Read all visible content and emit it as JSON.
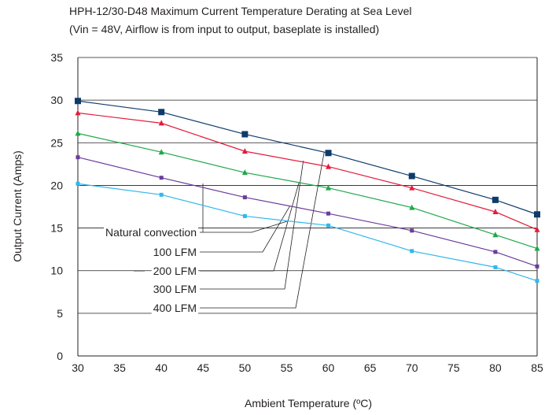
{
  "chart_data": {
    "type": "line",
    "title": "HPH-12/30-D48 Maximum Current Temperature Derating at Sea Level",
    "subtitle": "(Vin = 48V, Airflow is from input to output, baseplate is installed)",
    "xlabel": "Ambient Temperature (ºC)",
    "ylabel": "Output Current (Amps)",
    "xlim": [
      30,
      85
    ],
    "ylim": [
      0,
      35
    ],
    "xticks": [
      "30",
      "35",
      "40",
      "45",
      "50",
      "55",
      "60",
      "65",
      "70",
      "75",
      "80",
      "85"
    ],
    "yticks": [
      "0",
      "5",
      "10",
      "15",
      "20",
      "25",
      "30",
      "35"
    ],
    "grid": "horizontal",
    "x": [
      30,
      40,
      50,
      60,
      70,
      80,
      85
    ],
    "series": [
      {
        "name": "Natural convection",
        "color": "#30b8ec",
        "marker": "square",
        "values": [
          20.2,
          18.9,
          16.4,
          15.3,
          12.3,
          10.4,
          8.8
        ]
      },
      {
        "name": "100 LFM",
        "color": "#6a3d9a",
        "marker": "square",
        "values": [
          23.3,
          20.9,
          18.6,
          16.7,
          14.7,
          12.2,
          10.5
        ]
      },
      {
        "name": "200 LFM",
        "color": "#1fa84a",
        "marker": "triangle",
        "values": [
          26.1,
          23.9,
          21.5,
          19.7,
          17.4,
          14.2,
          12.6
        ]
      },
      {
        "name": "300 LFM",
        "color": "#e31b3c",
        "marker": "triangle",
        "values": [
          28.5,
          27.3,
          24.0,
          22.2,
          19.7,
          16.9,
          14.8
        ]
      },
      {
        "name": "400 LFM",
        "color": "#0d3b6b",
        "marker": "square",
        "values": [
          29.9,
          28.6,
          26.0,
          23.8,
          21.1,
          18.3,
          16.6
        ]
      }
    ]
  }
}
